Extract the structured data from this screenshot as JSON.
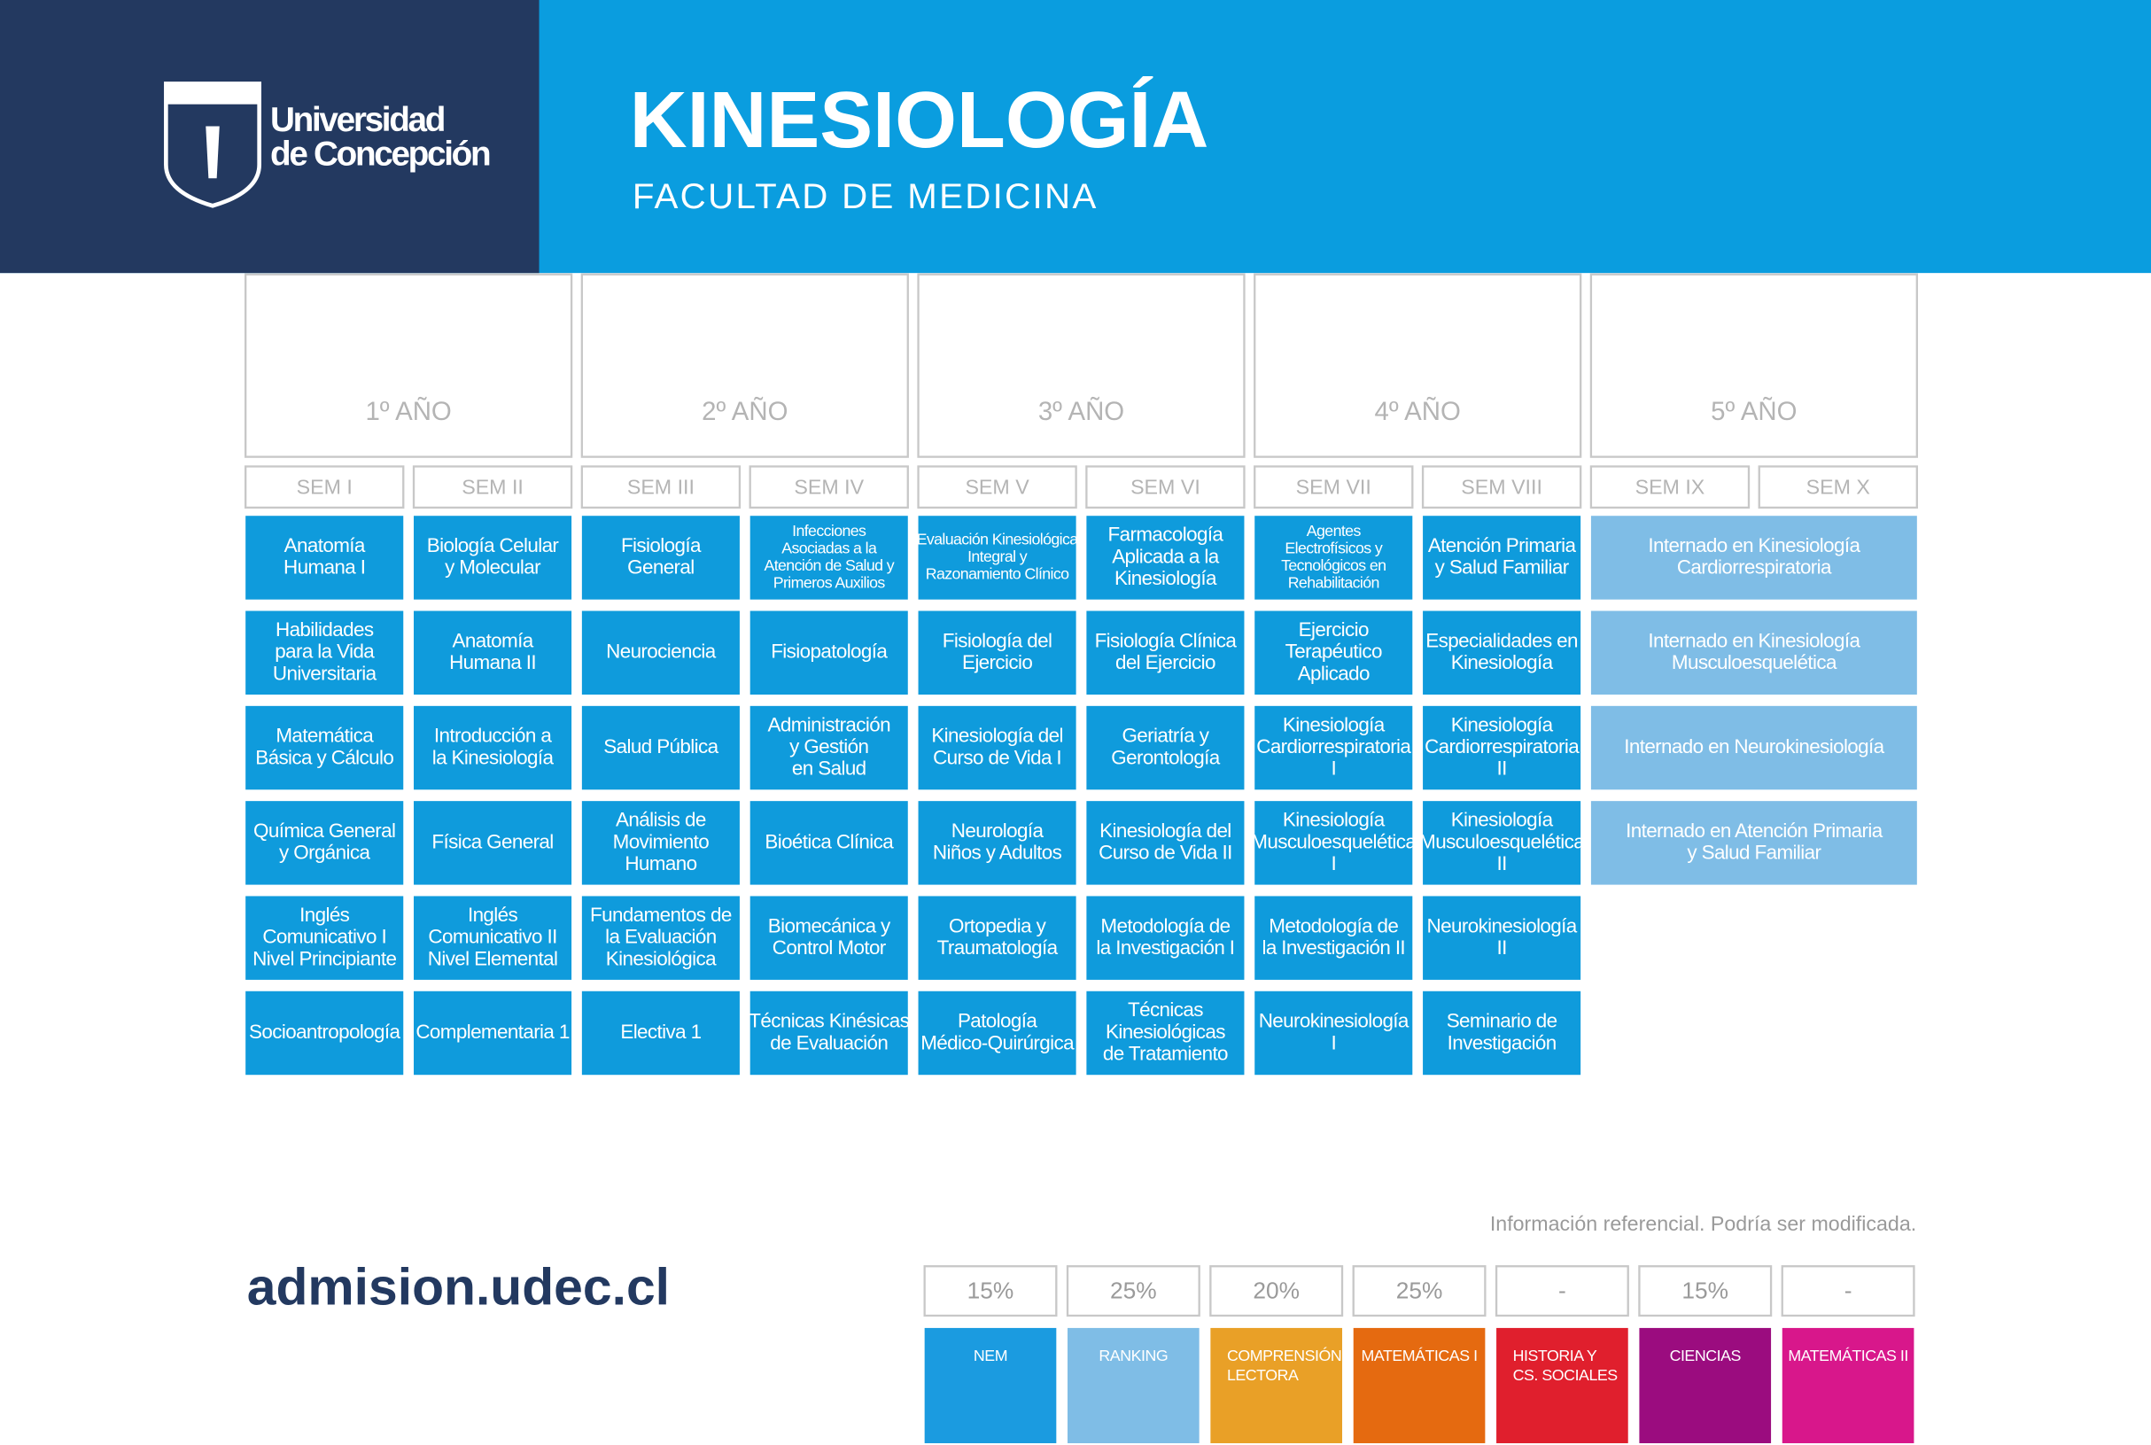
{
  "header": {
    "university": [
      "Universidad",
      "de Concepción"
    ],
    "title": "KINESIOLOGÍA",
    "subtitle": "FACULTAD DE MEDICINA"
  },
  "years": [
    "1º AÑO",
    "2º AÑO",
    "3º AÑO",
    "4º AÑO",
    "5º AÑO"
  ],
  "semesters": [
    "SEM I",
    "SEM II",
    "SEM III",
    "SEM IV",
    "SEM V",
    "SEM VI",
    "SEM VII",
    "SEM VIII",
    "SEM IX",
    "SEM X"
  ],
  "courses": [
    [
      [
        "Anatomía",
        "Humana I"
      ],
      [
        "Habilidades",
        "para la Vida",
        "Universitaria"
      ],
      [
        "Matemática",
        "Básica y Cálculo"
      ],
      [
        "Química General",
        "y Orgánica"
      ],
      [
        "Inglés",
        "Comunicativo I",
        "Nivel Principiante"
      ],
      [
        "Socioantropología"
      ]
    ],
    [
      [
        "Biología Celular",
        "y Molecular"
      ],
      [
        "Anatomía",
        "Humana II"
      ],
      [
        "Introducción a",
        "la Kinesiología"
      ],
      [
        "Física General"
      ],
      [
        "Inglés",
        "Comunicativo II",
        "Nivel Elemental"
      ],
      [
        "Complementaria 1"
      ]
    ],
    [
      [
        "Fisiología",
        "General"
      ],
      [
        "Neurociencia"
      ],
      [
        "Salud Pública"
      ],
      [
        "Análisis de",
        "Movimiento",
        "Humano"
      ],
      [
        "Fundamentos de",
        "la Evaluación",
        "Kinesiológica"
      ],
      [
        "Electiva 1"
      ]
    ],
    [
      [
        "Infecciones",
        "Asociadas a la",
        "Atención de Salud y",
        "Primeros Auxilios"
      ],
      [
        "Fisiopatología"
      ],
      [
        "Administración",
        "y Gestión",
        "en Salud"
      ],
      [
        "Bioética Clínica"
      ],
      [
        "Biomecánica y",
        "Control Motor"
      ],
      [
        "Técnicas Kinésicas",
        "de Evaluación"
      ]
    ],
    [
      [
        "Evaluación Kinesiológica",
        "Integral y",
        "Razonamiento Clínico"
      ],
      [
        "Fisiología del",
        "Ejercicio"
      ],
      [
        "Kinesiología del",
        "Curso de Vida I"
      ],
      [
        "Neurología",
        "Niños y Adultos"
      ],
      [
        "Ortopedia y",
        "Traumatología"
      ],
      [
        "Patología",
        "Médico-Quirúrgica"
      ]
    ],
    [
      [
        "Farmacología",
        "Aplicada a la",
        "Kinesiología"
      ],
      [
        "Fisiología Clínica",
        "del Ejercicio"
      ],
      [
        "Geriatría y",
        "Gerontología"
      ],
      [
        "Kinesiología del",
        "Curso de Vida II"
      ],
      [
        "Metodología de",
        "la Investigación I"
      ],
      [
        "Técnicas",
        "Kinesiológicas",
        "de Tratamiento"
      ]
    ],
    [
      [
        "Agentes",
        "Electrofísicos y",
        "Tecnológicos en",
        "Rehabilitación"
      ],
      [
        "Ejercicio",
        "Terapéutico",
        "Aplicado"
      ],
      [
        "Kinesiología",
        "Cardiorrespiratoria",
        "I"
      ],
      [
        "Kinesiología",
        "Musculoesquelética",
        "I"
      ],
      [
        "Metodología de",
        "la Investigación II"
      ],
      [
        "Neurokinesiología",
        "I"
      ]
    ],
    [
      [
        "Atención Primaria",
        "y Salud Familiar"
      ],
      [
        "Especialidades en",
        "Kinesiología"
      ],
      [
        "Kinesiología",
        "Cardiorrespiratoria",
        "II"
      ],
      [
        "Kinesiología",
        "Musculoesquelética",
        "II"
      ],
      [
        "Neurokinesiología",
        "II"
      ],
      [
        "Seminario de",
        "Investigación"
      ]
    ]
  ],
  "internships": [
    [
      "Internado en Kinesiología",
      "Cardiorrespiratoria"
    ],
    [
      "Internado en Kinesiología",
      "Musculoesquelética"
    ],
    [
      "Internado en Neurokinesiología"
    ],
    [
      "Internado en Atención Primaria",
      "y Salud Familiar"
    ]
  ],
  "footer": {
    "website": "admision.udec.cl",
    "note": "Información referencial. Podría ser modificada."
  },
  "weights": [
    {
      "value": "15%",
      "label": [
        "NEM"
      ],
      "color": "#1b9be0"
    },
    {
      "value": "25%",
      "label": [
        "RANKING"
      ],
      "color": "#7fbde6"
    },
    {
      "value": "20%",
      "label": [
        "COMPRENSIÓN",
        "LECTORA"
      ],
      "color": "#e9a027"
    },
    {
      "value": "25%",
      "label": [
        "MATEMÁTICAS I"
      ],
      "color": "#e56a10"
    },
    {
      "value": "-",
      "label": [
        "HISTORIA Y",
        "CS. SOCIALES"
      ],
      "color": "#e01f2d"
    },
    {
      "value": "15%",
      "label": [
        "CIENCIAS"
      ],
      "color": "#9b0c7f"
    },
    {
      "value": "-",
      "label": [
        "MATEMÁTICAS II"
      ],
      "color": "#d8178b"
    }
  ]
}
